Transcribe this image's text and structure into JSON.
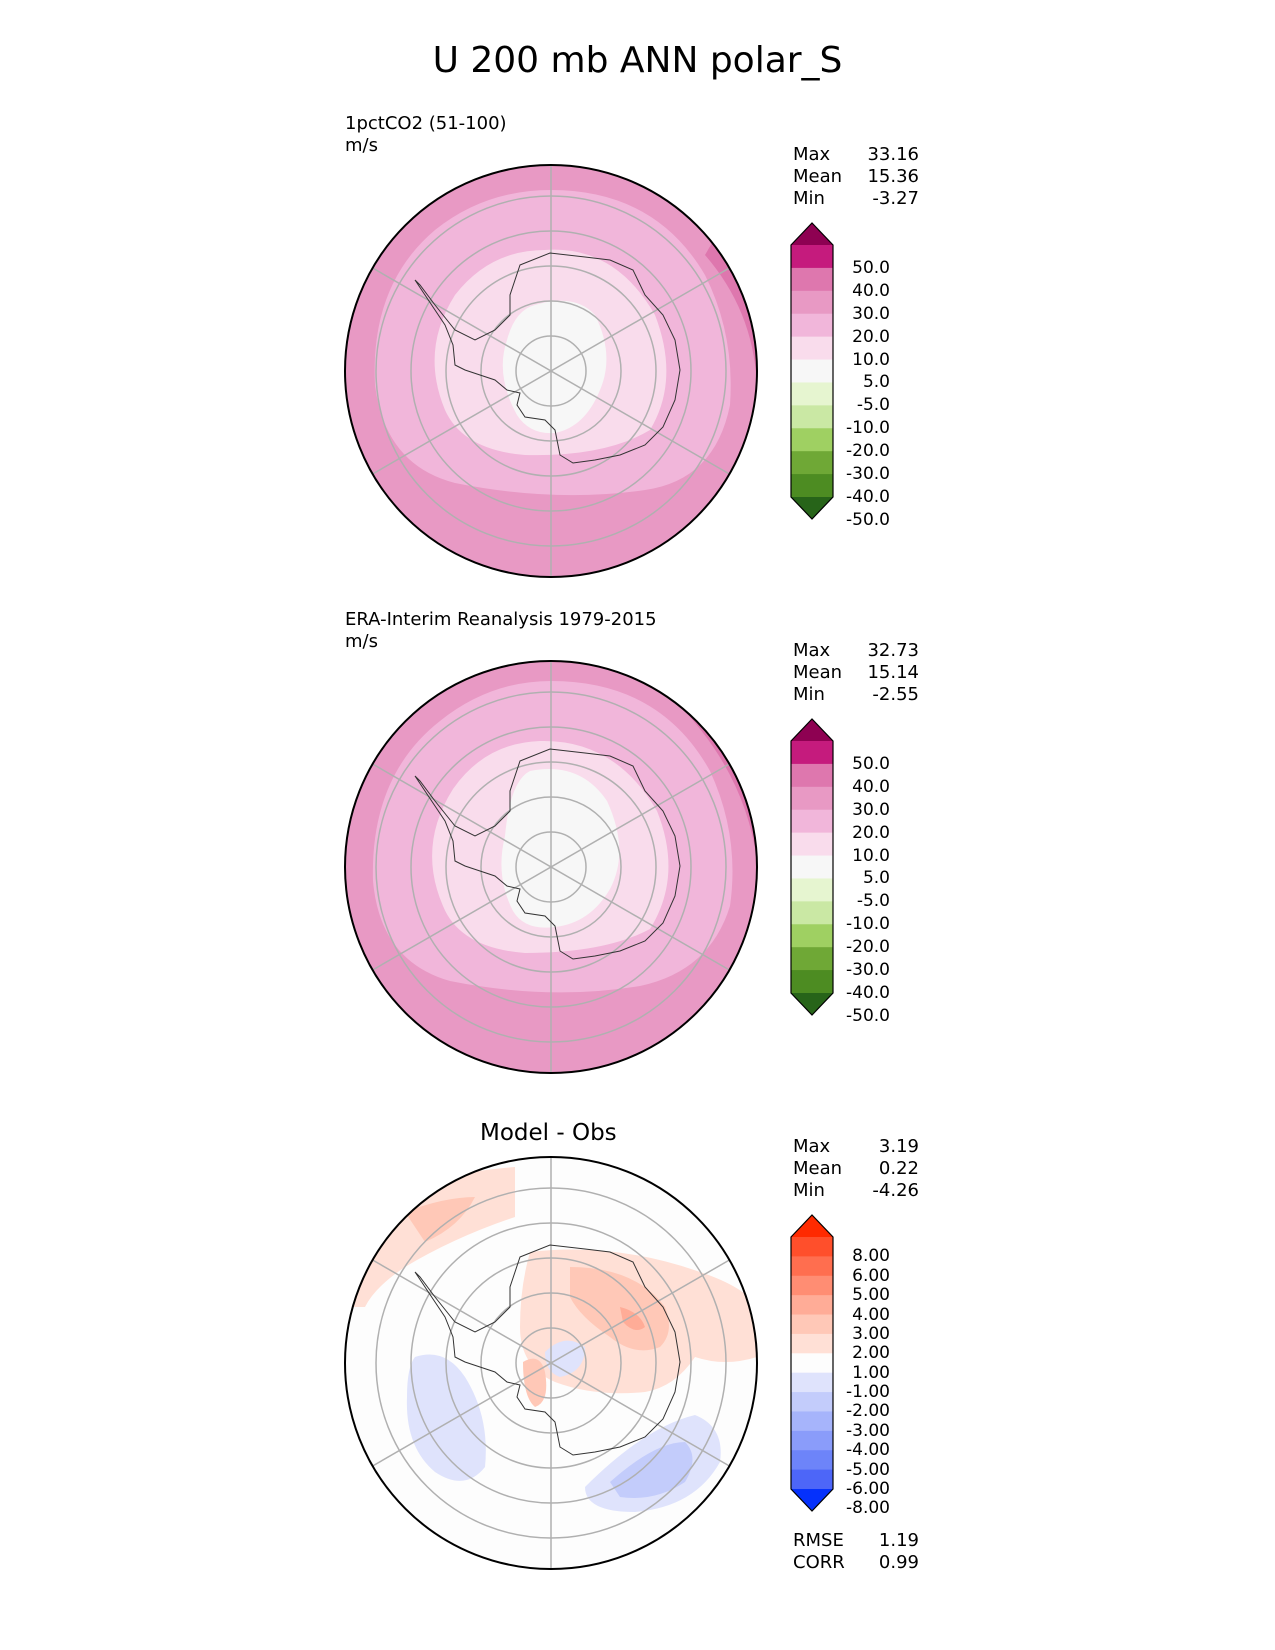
{
  "title": "U 200 mb ANN polar_S",
  "panels": [
    {
      "id": "model",
      "title": "1pctCO2 (51-100)",
      "units": "m/s",
      "stats": [
        {
          "label": "Max",
          "value": "33.16"
        },
        {
          "label": "Mean",
          "value": "15.36"
        },
        {
          "label": "Min",
          "value": "-3.27"
        }
      ],
      "colorbar": {
        "labels": [
          "50.0",
          "40.0",
          "30.0",
          "20.0",
          "10.0",
          "5.0",
          "-5.0",
          "-10.0",
          "-20.0",
          "-30.0",
          "-40.0",
          "-50.0"
        ],
        "colors": [
          "#8e0152",
          "#c51b7d",
          "#de77ae",
          "#e899c4",
          "#f1b6da",
          "#f9dcec",
          "#f7f7f7",
          "#e6f5d0",
          "#cae8a4",
          "#9fd062",
          "#6fa836",
          "#4d8c22",
          "#276419"
        ]
      }
    },
    {
      "id": "obs",
      "title": "ERA-Interim Reanalysis 1979-2015",
      "units": "m/s",
      "stats": [
        {
          "label": "Max",
          "value": "32.73"
        },
        {
          "label": "Mean",
          "value": "15.14"
        },
        {
          "label": "Min",
          "value": "-2.55"
        }
      ],
      "colorbar": {
        "labels": [
          "50.0",
          "40.0",
          "30.0",
          "20.0",
          "10.0",
          "5.0",
          "-5.0",
          "-10.0",
          "-20.0",
          "-30.0",
          "-40.0",
          "-50.0"
        ],
        "colors": [
          "#8e0152",
          "#c51b7d",
          "#de77ae",
          "#e899c4",
          "#f1b6da",
          "#f9dcec",
          "#f7f7f7",
          "#e6f5d0",
          "#cae8a4",
          "#9fd062",
          "#6fa836",
          "#4d8c22",
          "#276419"
        ]
      }
    },
    {
      "id": "diff",
      "title": "Model - Obs",
      "stats": [
        {
          "label": "Max",
          "value": "3.19"
        },
        {
          "label": "Mean",
          "value": "0.22"
        },
        {
          "label": "Min",
          "value": "-4.26"
        }
      ],
      "colorbar": {
        "labels": [
          "8.00",
          "6.00",
          "5.00",
          "4.00",
          "3.00",
          "2.00",
          "1.00",
          "-1.00",
          "-2.00",
          "-3.00",
          "-4.00",
          "-5.00",
          "-6.00",
          "-8.00"
        ],
        "colors": [
          "#ff2a00",
          "#ff4f2b",
          "#ff6e4f",
          "#ff8d73",
          "#ffac97",
          "#ffc8b7",
          "#ffe0d6",
          "#fdfdfd",
          "#dfe3fc",
          "#c3ccfb",
          "#a6b4fb",
          "#8a9cfa",
          "#6d84f9",
          "#4d66f8",
          "#0531fc"
        ]
      },
      "extra_stats": [
        {
          "label": "RMSE",
          "value": "1.19"
        },
        {
          "label": "CORR",
          "value": "0.99"
        }
      ]
    }
  ]
}
